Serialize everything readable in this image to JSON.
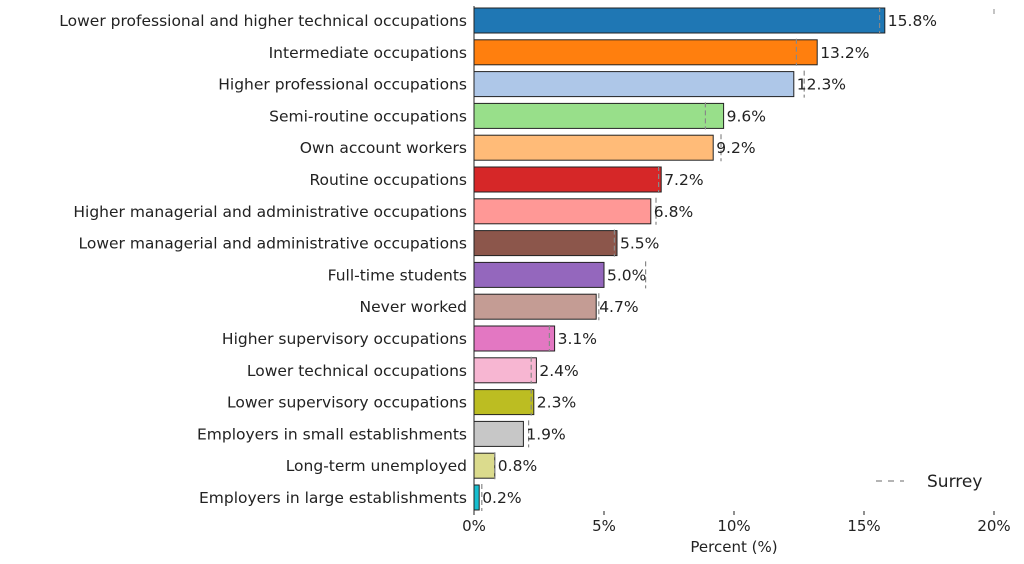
{
  "chart_data": {
    "type": "bar",
    "orientation": "horizontal",
    "categories": [
      "Lower professional and higher technical occupations",
      "Intermediate occupations",
      "Higher professional occupations",
      "Semi-routine occupations",
      "Own account workers",
      "Routine occupations",
      "Higher managerial and administrative occupations",
      "Lower managerial and administrative occupations",
      "Full-time students",
      "Never worked",
      "Higher supervisory occupations",
      "Lower technical occupations",
      "Lower supervisory occupations",
      "Employers in small establishments",
      "Long-term unemployed",
      "Employers in large establishments"
    ],
    "values": [
      15.8,
      13.2,
      12.3,
      9.6,
      9.2,
      7.2,
      6.8,
      5.5,
      5.0,
      4.7,
      3.1,
      2.4,
      2.3,
      1.9,
      0.8,
      0.2
    ],
    "value_labels": [
      "15.8%",
      "13.2%",
      "12.3%",
      "9.6%",
      "9.2%",
      "7.2%",
      "6.8%",
      "5.5%",
      "5.0%",
      "4.7%",
      "3.1%",
      "2.4%",
      "2.3%",
      "1.9%",
      "0.8%",
      "0.2%"
    ],
    "colors": [
      "#1f77b4",
      "#ff7f0e",
      "#aec7e8",
      "#98df8a",
      "#ffbb78",
      "#d62728",
      "#ff9896",
      "#8c564b",
      "#9467bd",
      "#c49c94",
      "#e377c2",
      "#f7b6d2",
      "#bcbd22",
      "#c7c7c7",
      "#dbdb8d",
      "#17becf"
    ],
    "reference_series": {
      "name": "Surrey",
      "values": [
        15.6,
        12.4,
        12.7,
        8.9,
        9.5,
        7.1,
        7.0,
        5.4,
        6.6,
        4.8,
        2.9,
        2.2,
        2.2,
        2.1,
        0.8,
        0.3
      ]
    },
    "xlabel": "Percent (%)",
    "xlim": [
      0,
      20
    ],
    "xticks": [
      0,
      5,
      10,
      15,
      20
    ],
    "xtick_labels": [
      "0%",
      "5%",
      "10%",
      "15%",
      "20%"
    ],
    "legend": {
      "entries": [
        "Surrey"
      ],
      "position": "lower-right",
      "style": "dashed"
    },
    "grid": false
  }
}
